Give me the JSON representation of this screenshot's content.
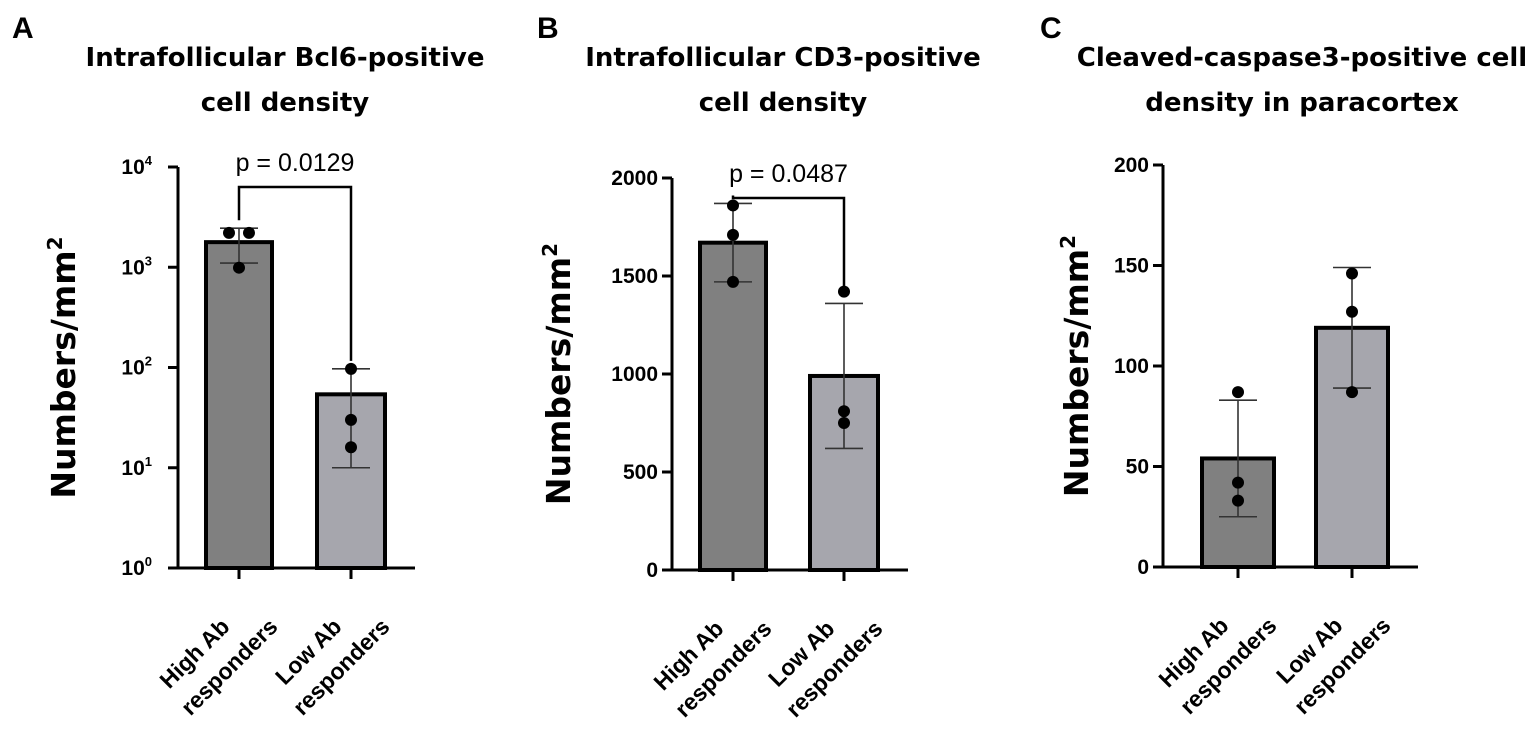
{
  "chart_data": [
    {
      "panel": "A",
      "type": "bar",
      "title_lines": [
        "Intrafollicular Bcl6-positive",
        "cell density"
      ],
      "ylabel": "Numbers/mm",
      "ylabel_sup": "2",
      "yscale": "log",
      "ylim": [
        1,
        10000
      ],
      "yticks": [
        {
          "value": 1,
          "base": "10",
          "exp": "0"
        },
        {
          "value": 10,
          "base": "10",
          "exp": "1"
        },
        {
          "value": 100,
          "base": "10",
          "exp": "2"
        },
        {
          "value": 1000,
          "base": "10",
          "exp": "3"
        },
        {
          "value": 10000,
          "base": "10",
          "exp": "4"
        }
      ],
      "categories": [
        {
          "line1": "High Ab",
          "line2": "responders"
        },
        {
          "line1": "Low Ab",
          "line2": "responders"
        }
      ],
      "bar_colors": [
        "#808080",
        "#a6a6ad"
      ],
      "values": [
        1780,
        54
      ],
      "err_low": [
        1100,
        10
      ],
      "err_high": [
        2450,
        97
      ],
      "points": [
        [
          2200,
          2200,
          990
        ],
        [
          97,
          30,
          16
        ]
      ],
      "significance": "p = 0.0129"
    },
    {
      "panel": "B",
      "type": "bar",
      "title_lines": [
        "Intrafollicular CD3-positive",
        "cell density"
      ],
      "ylabel": "Numbers/mm",
      "ylabel_sup": "2",
      "yscale": "linear",
      "ylim": [
        0,
        2000
      ],
      "yticks": [
        {
          "value": 0,
          "label": "0"
        },
        {
          "value": 500,
          "label": "500"
        },
        {
          "value": 1000,
          "label": "1000"
        },
        {
          "value": 1500,
          "label": "1500"
        },
        {
          "value": 2000,
          "label": "2000"
        }
      ],
      "categories": [
        {
          "line1": "High Ab",
          "line2": "responders"
        },
        {
          "line1": "Low Ab",
          "line2": "responders"
        }
      ],
      "bar_colors": [
        "#808080",
        "#a6a6ad"
      ],
      "values": [
        1670,
        990
      ],
      "err_low": [
        1470,
        620
      ],
      "err_high": [
        1870,
        1360
      ],
      "points": [
        [
          1860,
          1710,
          1470
        ],
        [
          1420,
          810,
          750
        ]
      ],
      "significance": "p = 0.0487"
    },
    {
      "panel": "C",
      "type": "bar",
      "title_lines": [
        "Cleaved-caspase3-positive cell",
        "density in paracortex"
      ],
      "ylabel": "Numbers/mm",
      "ylabel_sup": "2",
      "yscale": "linear",
      "ylim": [
        0,
        200
      ],
      "yticks": [
        {
          "value": 0,
          "label": "0"
        },
        {
          "value": 50,
          "label": "50"
        },
        {
          "value": 100,
          "label": "100"
        },
        {
          "value": 150,
          "label": "150"
        },
        {
          "value": 200,
          "label": "200"
        }
      ],
      "categories": [
        {
          "line1": "High Ab",
          "line2": "responders"
        },
        {
          "line1": "Low Ab",
          "line2": "responders"
        }
      ],
      "bar_colors": [
        "#808080",
        "#a6a6ad"
      ],
      "values": [
        54,
        119
      ],
      "err_low": [
        25,
        89
      ],
      "err_high": [
        83,
        149
      ],
      "points": [
        [
          87,
          42,
          33
        ],
        [
          146,
          127,
          87
        ]
      ],
      "significance": ""
    }
  ]
}
